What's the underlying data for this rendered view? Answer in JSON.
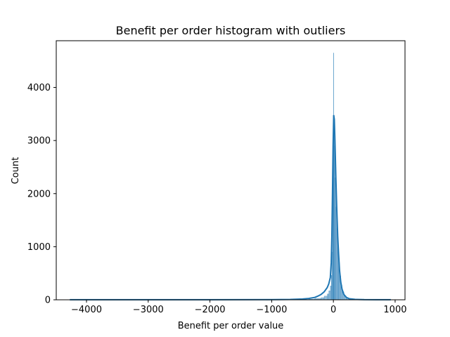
{
  "chart_data": {
    "type": "histogram",
    "title": "Benefit per order histogram with outliers",
    "xlabel": "Benefit per order value",
    "ylabel": "Count",
    "xlim": [
      -4490,
      1160
    ],
    "ylim": [
      0,
      4880
    ],
    "x_ticks": [
      -4000,
      -3000,
      -2000,
      -1000,
      0,
      1000
    ],
    "y_ticks": [
      0,
      1000,
      2000,
      3000,
      4000
    ],
    "bar_color": "#1f77b4",
    "bar_opacity": 0.5,
    "line_color": "#1f77b4",
    "grid": false,
    "bins": [
      {
        "x0": -400,
        "x1": -300,
        "count": 10
      },
      {
        "x0": -300,
        "x1": -200,
        "count": 25
      },
      {
        "x0": -200,
        "x1": -150,
        "count": 40
      },
      {
        "x0": -150,
        "x1": -100,
        "count": 70
      },
      {
        "x0": -100,
        "x1": -75,
        "count": 110
      },
      {
        "x0": -75,
        "x1": -50,
        "count": 170
      },
      {
        "x0": -50,
        "x1": -35,
        "count": 260
      },
      {
        "x0": -35,
        "x1": -25,
        "count": 460
      },
      {
        "x0": -25,
        "x1": -15,
        "count": 900
      },
      {
        "x0": -15,
        "x1": -5,
        "count": 2200
      },
      {
        "x0": -5,
        "x1": 0,
        "count": 3250
      },
      {
        "x0": 0,
        "x1": 5,
        "count": 4650
      },
      {
        "x0": 5,
        "x1": 15,
        "count": 3300
      },
      {
        "x0": 15,
        "x1": 25,
        "count": 2900
      },
      {
        "x0": 25,
        "x1": 40,
        "count": 2300
      },
      {
        "x0": 40,
        "x1": 55,
        "count": 1750
      },
      {
        "x0": 55,
        "x1": 70,
        "count": 1350
      },
      {
        "x0": 70,
        "x1": 85,
        "count": 1000
      },
      {
        "x0": 85,
        "x1": 100,
        "count": 700
      },
      {
        "x0": 100,
        "x1": 120,
        "count": 450
      },
      {
        "x0": 120,
        "x1": 140,
        "count": 280
      },
      {
        "x0": 140,
        "x1": 170,
        "count": 150
      },
      {
        "x0": 170,
        "x1": 210,
        "count": 70
      },
      {
        "x0": 210,
        "x1": 260,
        "count": 25
      },
      {
        "x0": 260,
        "x1": 350,
        "count": 8
      }
    ],
    "kde": [
      {
        "x": -4270,
        "y": 2
      },
      {
        "x": -3000,
        "y": 2
      },
      {
        "x": -2000,
        "y": 2
      },
      {
        "x": -1000,
        "y": 3
      },
      {
        "x": -700,
        "y": 6
      },
      {
        "x": -500,
        "y": 15
      },
      {
        "x": -400,
        "y": 25
      },
      {
        "x": -300,
        "y": 45
      },
      {
        "x": -250,
        "y": 70
      },
      {
        "x": -200,
        "y": 100
      },
      {
        "x": -150,
        "y": 150
      },
      {
        "x": -100,
        "y": 230
      },
      {
        "x": -75,
        "y": 300
      },
      {
        "x": -50,
        "y": 420
      },
      {
        "x": -35,
        "y": 700
      },
      {
        "x": -25,
        "y": 1200
      },
      {
        "x": -15,
        "y": 2000
      },
      {
        "x": -5,
        "y": 2900
      },
      {
        "x": 5,
        "y": 3480
      },
      {
        "x": 15,
        "y": 3400
      },
      {
        "x": 25,
        "y": 3000
      },
      {
        "x": 40,
        "y": 2300
      },
      {
        "x": 55,
        "y": 1700
      },
      {
        "x": 70,
        "y": 1200
      },
      {
        "x": 85,
        "y": 850
      },
      {
        "x": 100,
        "y": 550
      },
      {
        "x": 120,
        "y": 330
      },
      {
        "x": 140,
        "y": 200
      },
      {
        "x": 170,
        "y": 100
      },
      {
        "x": 210,
        "y": 45
      },
      {
        "x": 260,
        "y": 20
      },
      {
        "x": 350,
        "y": 8
      },
      {
        "x": 500,
        "y": 3
      },
      {
        "x": 700,
        "y": 2
      },
      {
        "x": 930,
        "y": 1
      }
    ]
  }
}
